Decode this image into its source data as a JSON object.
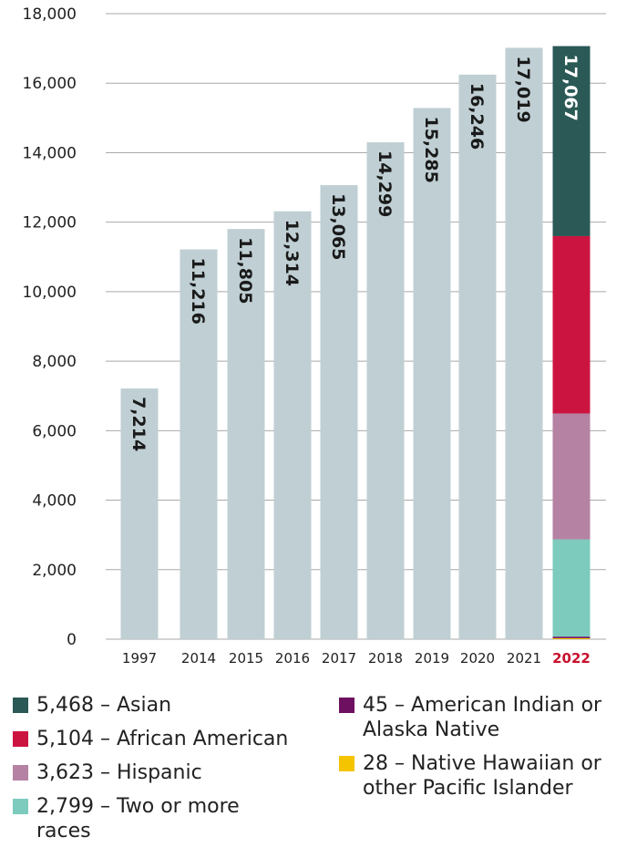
{
  "chart_data": {
    "type": "bar",
    "categories": [
      "1997",
      "2014",
      "2015",
      "2016",
      "2017",
      "2018",
      "2019",
      "2020",
      "2021",
      "2022"
    ],
    "values": [
      7214,
      11216,
      11805,
      12314,
      13065,
      14299,
      15285,
      16246,
      17019,
      17067
    ],
    "value_labels": [
      "7,214",
      "11,216",
      "11,805",
      "12,314",
      "13,065",
      "14,299",
      "15,285",
      "16,246",
      "17,019",
      "17,067"
    ],
    "highlight_category": "2022",
    "ylim": [
      0,
      18000
    ],
    "yticks": [
      0,
      2000,
      4000,
      6000,
      8000,
      10000,
      12000,
      14000,
      16000,
      18000
    ],
    "ytick_labels": [
      "0",
      "2,000",
      "4,000",
      "6,000",
      "8,000",
      "10,000",
      "12,000",
      "14,000",
      "16,000",
      "18,000"
    ],
    "grid": true,
    "bar_color": "#bfcfd3",
    "stacked_2022": [
      {
        "name": "Native Hawaiian or other Pacific Islander",
        "value": 28,
        "color": "#f5c400"
      },
      {
        "name": "American Indian or Alaska Native",
        "value": 45,
        "color": "#6e1060"
      },
      {
        "name": "Two or more races",
        "value": 2799,
        "color": "#7ccbbd"
      },
      {
        "name": "Hispanic",
        "value": 3623,
        "color": "#b582a4"
      },
      {
        "name": "African American",
        "value": 5104,
        "color": "#cc1440"
      },
      {
        "name": "Asian",
        "value": 5468,
        "color": "#2a5956"
      }
    ],
    "title": "",
    "xlabel": "",
    "ylabel": ""
  },
  "legend": {
    "left": [
      {
        "text": "5,468 – Asian",
        "color": "#2a5956"
      },
      {
        "text": "5,104 – African American",
        "color": "#cc1440"
      },
      {
        "text": "3,623 – Hispanic",
        "color": "#b582a4"
      },
      {
        "text": "2,799 – Two or more races",
        "color": "#7ccbbd"
      }
    ],
    "right": [
      {
        "text": "45 – American Indian or Alaska Native",
        "color": "#6e1060"
      },
      {
        "text": "28 – Native Hawaiian or other Pacific Islander",
        "color": "#f5c400"
      }
    ]
  }
}
